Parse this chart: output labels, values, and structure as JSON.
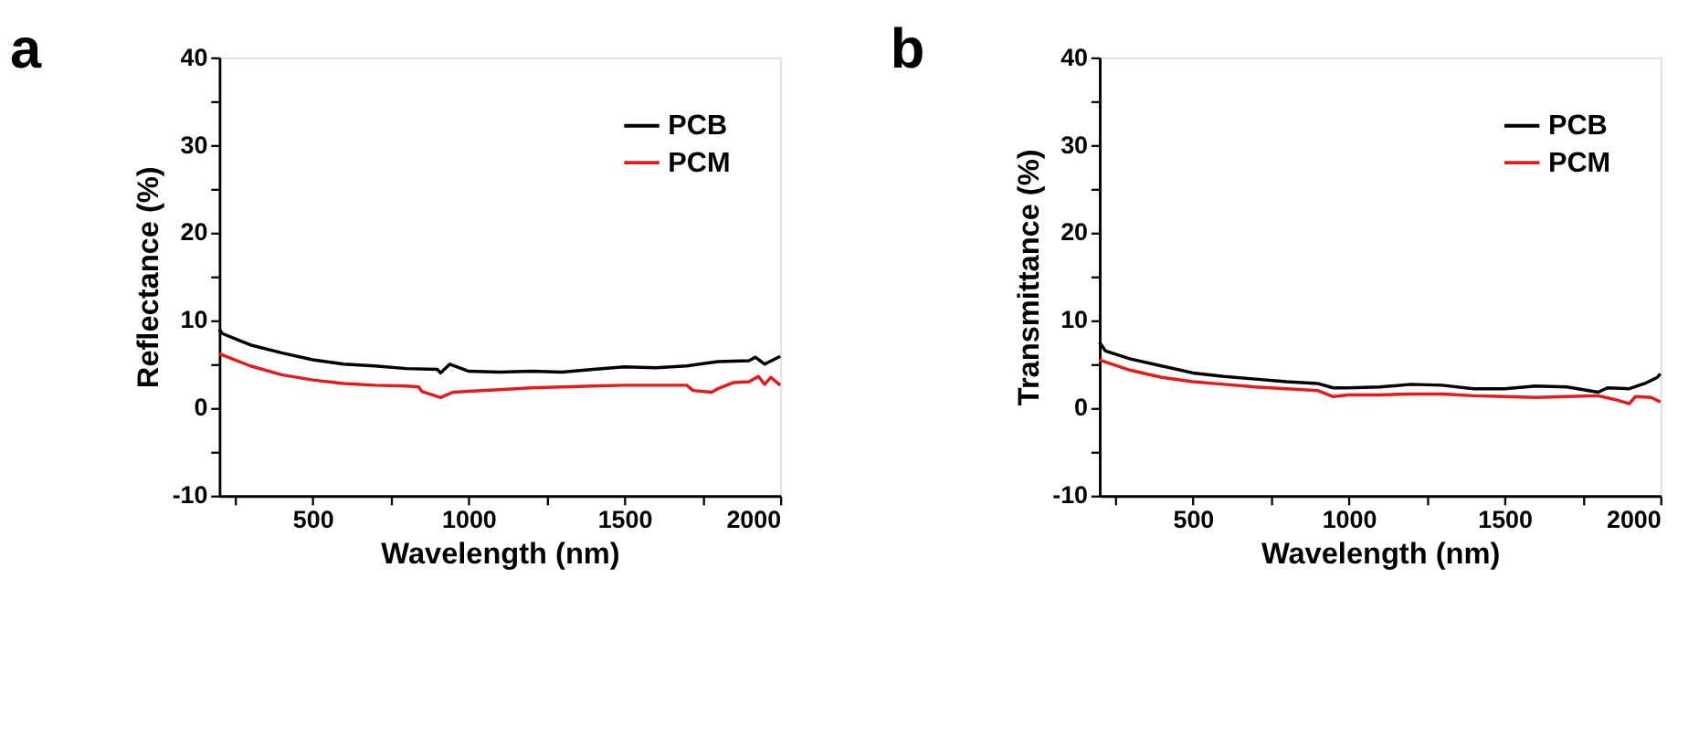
{
  "chart_data": [
    {
      "type": "line",
      "title": "a",
      "xlabel": "Wavelength (nm)",
      "ylabel": "Reflectance (%)",
      "xlim": [
        200,
        2000
      ],
      "ylim": [
        -10,
        40
      ],
      "xticks": [
        {
          "value": 250,
          "label": null
        },
        500,
        {
          "value": 750,
          "label": null
        },
        1000,
        {
          "value": 1250,
          "label": null
        },
        1500,
        {
          "value": 1750,
          "label": null
        },
        2000
      ],
      "yticks": [
        -10,
        {
          "value": -5,
          "label": null
        },
        0,
        {
          "value": 5,
          "label": null
        },
        10,
        {
          "value": 15,
          "label": null
        },
        20,
        {
          "value": 25,
          "label": null
        },
        30,
        {
          "value": 35,
          "label": null
        },
        40
      ],
      "grid": false,
      "legend": "top right",
      "line_style": "solid",
      "marker": "none",
      "series": [
        {
          "name": "PCB",
          "color": "#000000",
          "x": [
            200,
            210,
            300,
            400,
            500,
            600,
            700,
            800,
            900,
            910,
            940,
            1000,
            1100,
            1200,
            1300,
            1400,
            1500,
            1600,
            1700,
            1800,
            1900,
            1920,
            1950,
            2000
          ],
          "values": [
            9,
            8.5,
            7.2,
            6.3,
            5.5,
            5.0,
            4.8,
            4.5,
            4.4,
            4.0,
            5.0,
            4.2,
            4.1,
            4.2,
            4.1,
            4.4,
            4.7,
            4.6,
            4.8,
            5.3,
            5.4,
            5.8,
            5.0,
            5.9
          ]
        },
        {
          "name": "PCM",
          "color": "#e41a1c",
          "x": [
            200,
            300,
            400,
            500,
            600,
            700,
            800,
            840,
            850,
            910,
            950,
            1000,
            1100,
            1200,
            1300,
            1400,
            1500,
            1600,
            1700,
            1720,
            1780,
            1800,
            1850,
            1900,
            1930,
            1950,
            1970,
            2000
          ],
          "values": [
            6.2,
            4.8,
            3.8,
            3.2,
            2.8,
            2.6,
            2.5,
            2.4,
            1.9,
            1.2,
            1.8,
            1.9,
            2.1,
            2.3,
            2.4,
            2.5,
            2.6,
            2.6,
            2.6,
            2.0,
            1.8,
            2.2,
            2.9,
            3.0,
            3.6,
            2.7,
            3.5,
            2.6
          ]
        }
      ]
    },
    {
      "type": "line",
      "title": "b",
      "xlabel": "Wavelength (nm)",
      "ylabel": "Transmittance (%)",
      "xlim": [
        200,
        2000
      ],
      "ylim": [
        -10,
        40
      ],
      "xticks": [
        {
          "value": 250,
          "label": null
        },
        500,
        {
          "value": 750,
          "label": null
        },
        1000,
        {
          "value": 1250,
          "label": null
        },
        1500,
        {
          "value": 1750,
          "label": null
        },
        2000
      ],
      "yticks": [
        -10,
        {
          "value": -5,
          "label": null
        },
        0,
        {
          "value": 5,
          "label": null
        },
        10,
        {
          "value": 15,
          "label": null
        },
        20,
        {
          "value": 25,
          "label": null
        },
        30,
        {
          "value": 35,
          "label": null
        },
        40
      ],
      "grid": false,
      "legend": "top right",
      "line_style": "solid",
      "marker": "none",
      "series": [
        {
          "name": "PCB",
          "color": "#000000",
          "x": [
            200,
            220,
            300,
            400,
            500,
            600,
            700,
            800,
            900,
            950,
            1000,
            1100,
            1200,
            1300,
            1400,
            1500,
            1600,
            1700,
            1800,
            1830,
            1900,
            1950,
            1990,
            2000
          ],
          "values": [
            7.5,
            6.5,
            5.6,
            4.8,
            4.0,
            3.6,
            3.3,
            3.0,
            2.8,
            2.3,
            2.3,
            2.4,
            2.7,
            2.6,
            2.2,
            2.2,
            2.5,
            2.4,
            1.8,
            2.3,
            2.2,
            2.8,
            3.5,
            3.9
          ]
        },
        {
          "name": "PCM",
          "color": "#e41a1c",
          "x": [
            200,
            300,
            400,
            500,
            600,
            700,
            800,
            900,
            950,
            1000,
            1100,
            1200,
            1300,
            1400,
            1500,
            1600,
            1700,
            1800,
            1850,
            1900,
            1920,
            1970,
            2000
          ],
          "values": [
            5.5,
            4.3,
            3.5,
            3.0,
            2.7,
            2.4,
            2.2,
            2.0,
            1.3,
            1.5,
            1.5,
            1.6,
            1.6,
            1.4,
            1.3,
            1.2,
            1.3,
            1.4,
            1.0,
            0.5,
            1.3,
            1.2,
            0.7
          ]
        }
      ]
    }
  ]
}
